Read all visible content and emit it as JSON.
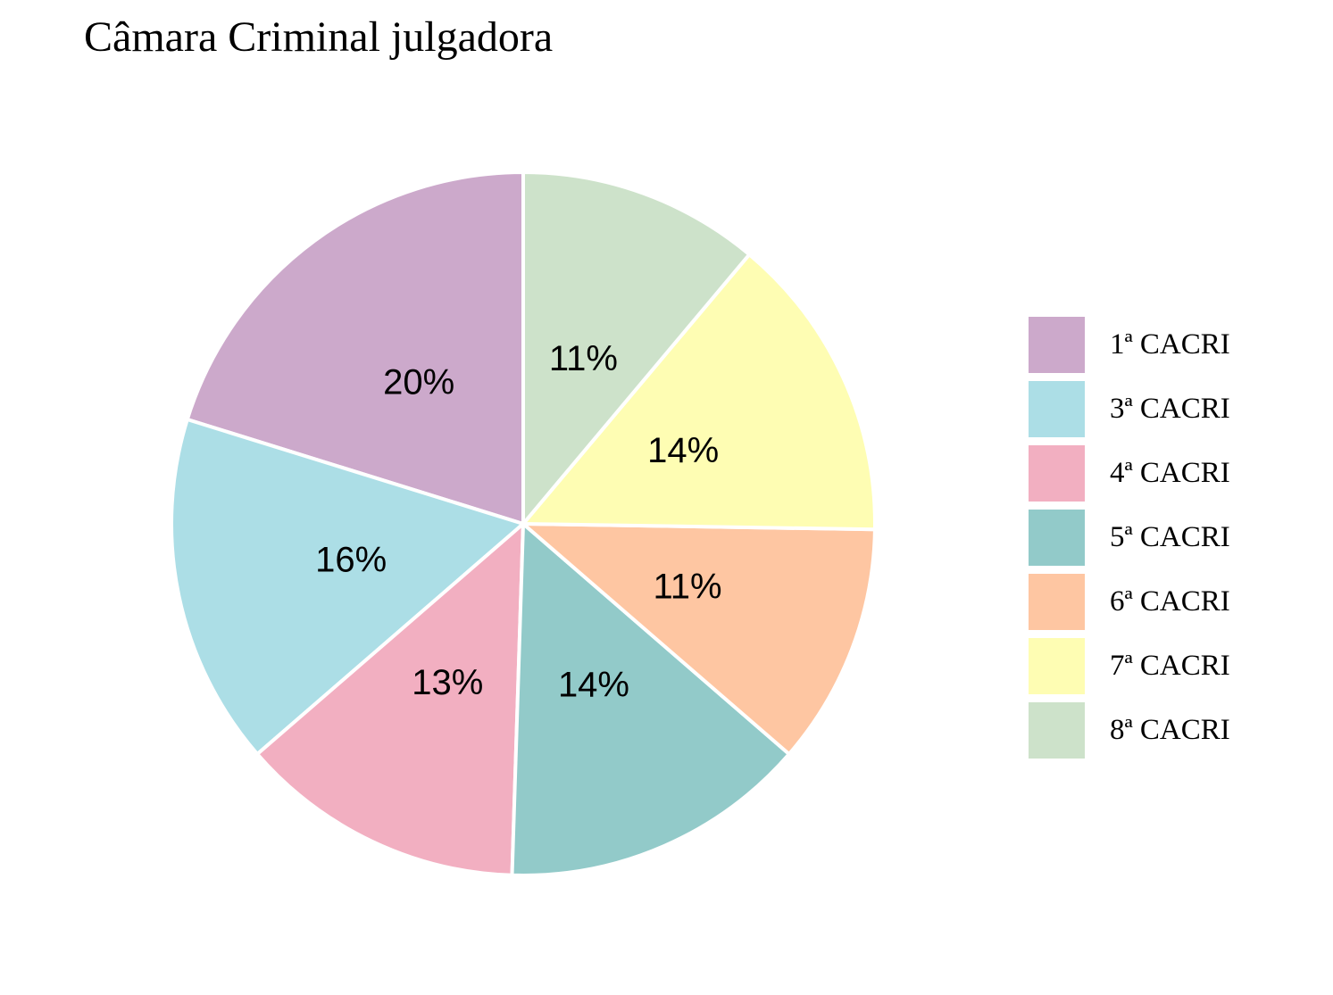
{
  "chart_data": {
    "type": "pie",
    "title": "Câmara Criminal julgadora",
    "legend_position": "right",
    "direction": "counterclockwise-from-top",
    "slices": [
      {
        "category": "1ª CACRI",
        "value": 20,
        "label": "20%",
        "color": "#CCA9CB"
      },
      {
        "category": "3ª CACRI",
        "value": 16,
        "label": "16%",
        "color": "#ACDEE6"
      },
      {
        "category": "4ª CACRI",
        "value": 13,
        "label": "13%",
        "color": "#F2AFC1"
      },
      {
        "category": "5ª CACRI",
        "value": 14,
        "label": "14%",
        "color": "#92CAC9"
      },
      {
        "category": "6ª CACRI",
        "value": 11,
        "label": "11%",
        "color": "#FEC6A2"
      },
      {
        "category": "7ª CACRI",
        "value": 14,
        "label": "14%",
        "color": "#FEFDB3"
      },
      {
        "category": "8ª CACRI",
        "value": 11,
        "label": "11%",
        "color": "#CDE2CA"
      }
    ]
  }
}
